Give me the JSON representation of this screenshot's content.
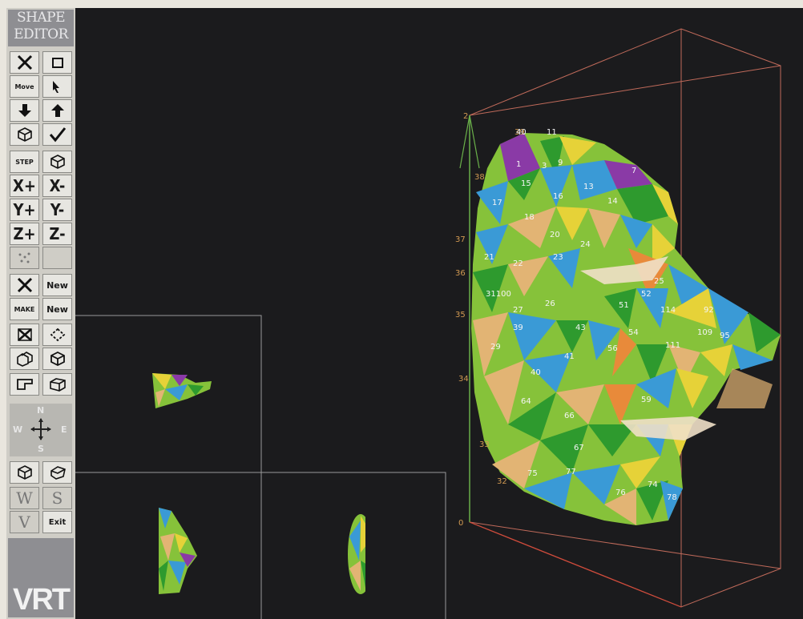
{
  "toolbar": {
    "title_line1": "SHAPE",
    "title_line2": "EDITOR",
    "rows": [
      {
        "left": {
          "name": "delete-button",
          "icon": "x-icon"
        },
        "right": {
          "name": "window-button",
          "icon": "window-icon"
        }
      },
      {
        "left": {
          "name": "move-button",
          "label": "Move"
        },
        "right": {
          "name": "pointer-button",
          "icon": "pointer-icon"
        }
      },
      {
        "left": {
          "name": "down-button",
          "icon": "arrow-down-icon"
        },
        "right": {
          "name": "up-button",
          "icon": "arrow-up-icon"
        }
      },
      {
        "left": {
          "name": "object-button",
          "icon": "cube-icon"
        },
        "right": {
          "name": "confirm-button",
          "icon": "check-icon"
        }
      },
      {
        "left": {
          "name": "step-button",
          "label": "STEP"
        },
        "right": {
          "name": "view-object-button",
          "icon": "cube-icon"
        }
      },
      {
        "left": {
          "name": "x-plus-button",
          "label": "X+"
        },
        "right": {
          "name": "x-minus-button",
          "label": "X-"
        }
      },
      {
        "left": {
          "name": "y-plus-button",
          "label": "Y+"
        },
        "right": {
          "name": "y-minus-button",
          "label": "Y-"
        }
      },
      {
        "left": {
          "name": "z-plus-button",
          "label": "Z+"
        },
        "right": {
          "name": "z-minus-button",
          "label": "Z-"
        }
      },
      {
        "left": {
          "name": "points-button",
          "icon": "dots-icon"
        },
        "right": {
          "name": "disabled-button",
          "icon": "blank-icon"
        }
      },
      {
        "left": {
          "name": "cross-button",
          "icon": "x-icon"
        },
        "right": {
          "name": "new-button",
          "label": "New"
        }
      },
      {
        "left": {
          "name": "make-button",
          "label": "MAKE"
        },
        "right": {
          "name": "new-2-button",
          "label": "New"
        }
      },
      {
        "left": {
          "name": "delete-shape-button",
          "icon": "x-box-icon"
        },
        "right": {
          "name": "rotate-button",
          "icon": "rotate-icon"
        }
      },
      {
        "left": {
          "name": "copy-button",
          "icon": "copy-icon"
        },
        "right": {
          "name": "solid-button",
          "icon": "cube-icon"
        }
      },
      {
        "left": {
          "name": "tool-button",
          "icon": "tool-icon"
        },
        "right": {
          "name": "box-button",
          "icon": "cube-icon"
        }
      }
    ],
    "compass": {
      "n": "N",
      "e": "E",
      "s": "S",
      "w": "W"
    },
    "bottom_rows": [
      {
        "left": {
          "name": "view-a-button",
          "icon": "cube-icon"
        },
        "right": {
          "name": "view-b-button",
          "icon": "cube-icon"
        }
      },
      {
        "left": {
          "name": "w-button",
          "label": "W"
        },
        "right": {
          "name": "s-button",
          "label": "S"
        }
      },
      {
        "left": {
          "name": "v-button",
          "label": "V"
        },
        "right": {
          "name": "exit-button",
          "label": "Exit"
        }
      }
    ],
    "brand": "VRT"
  },
  "viewport": {
    "axis_numbers": [
      "2",
      "39",
      "38",
      "37",
      "36",
      "35",
      "34",
      "33",
      "32",
      "0"
    ],
    "face_labels": [
      "40",
      "11",
      "9",
      "1",
      "3",
      "13",
      "15",
      "16",
      "14",
      "17",
      "7",
      "18",
      "20",
      "24",
      "21",
      "22",
      "23",
      "31100",
      "26",
      "27",
      "39",
      "43",
      "40",
      "29",
      "41",
      "56",
      "64",
      "59",
      "66",
      "67",
      "75",
      "76",
      "77",
      "74",
      "78",
      "51",
      "52",
      "54",
      "92",
      "95",
      "109",
      "114",
      "111",
      "25"
    ],
    "colors": {
      "bg": "#1b1b1d",
      "purple": "#8a3aa6",
      "green": "#2e9a2e",
      "lime": "#86c23a",
      "yellow": "#e6d238",
      "blue": "#3a9ad6",
      "tan": "#e2b474",
      "orange": "#e88a3a",
      "axis_green": "#6ab04a",
      "axis_red": "#d04a3a",
      "axis_number": "#d29a52"
    }
  }
}
